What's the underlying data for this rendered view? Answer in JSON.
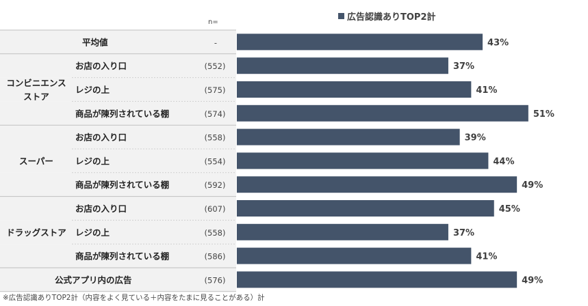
{
  "chart_data": {
    "type": "bar",
    "orientation": "horizontal",
    "legend": "広告認識ありTOP2計",
    "n_header": "n=",
    "footnote": "※広告認識ありTOP2計（内容をよく見ている＋内容をたまに見ることがある）計",
    "bar_color": "#44546a",
    "xlim": [
      0,
      100
    ],
    "rows": [
      {
        "group": "",
        "label": "平均値",
        "n": "-",
        "value": 43,
        "value_label": "43%"
      },
      {
        "group": "コンビニエンスストア",
        "label": "お店の入り口",
        "n": "(552)",
        "value": 37,
        "value_label": "37%"
      },
      {
        "group": "コンビニエンスストア",
        "label": "レジの上",
        "n": "(575)",
        "value": 41,
        "value_label": "41%"
      },
      {
        "group": "コンビニエンスストア",
        "label": "商品が陳列されている棚",
        "n": "(574)",
        "value": 51,
        "value_label": "51%"
      },
      {
        "group": "スーパー",
        "label": "お店の入り口",
        "n": "(558)",
        "value": 39,
        "value_label": "39%"
      },
      {
        "group": "スーパー",
        "label": "レジの上",
        "n": "(554)",
        "value": 44,
        "value_label": "44%"
      },
      {
        "group": "スーパー",
        "label": "商品が陳列されている棚",
        "n": "(592)",
        "value": 49,
        "value_label": "49%"
      },
      {
        "group": "ドラッグストア",
        "label": "お店の入り口",
        "n": "(607)",
        "value": 45,
        "value_label": "45%"
      },
      {
        "group": "ドラッグストア",
        "label": "レジの上",
        "n": "(558)",
        "value": 37,
        "value_label": "37%"
      },
      {
        "group": "ドラッグストア",
        "label": "商品が陳列されている棚",
        "n": "(586)",
        "value": 41,
        "value_label": "41%"
      },
      {
        "group": "",
        "label": "公式アプリ内の広告",
        "n": "(576)",
        "value": 49,
        "value_label": "49%"
      }
    ],
    "groups": [
      {
        "name": "コンビニエンスストア",
        "lines": [
          "コンビニエンス",
          "ストア"
        ]
      },
      {
        "name": "スーパー",
        "lines": [
          "スーパー"
        ]
      },
      {
        "name": "ドラッグストア",
        "lines": [
          "ドラッグストア"
        ]
      }
    ]
  }
}
